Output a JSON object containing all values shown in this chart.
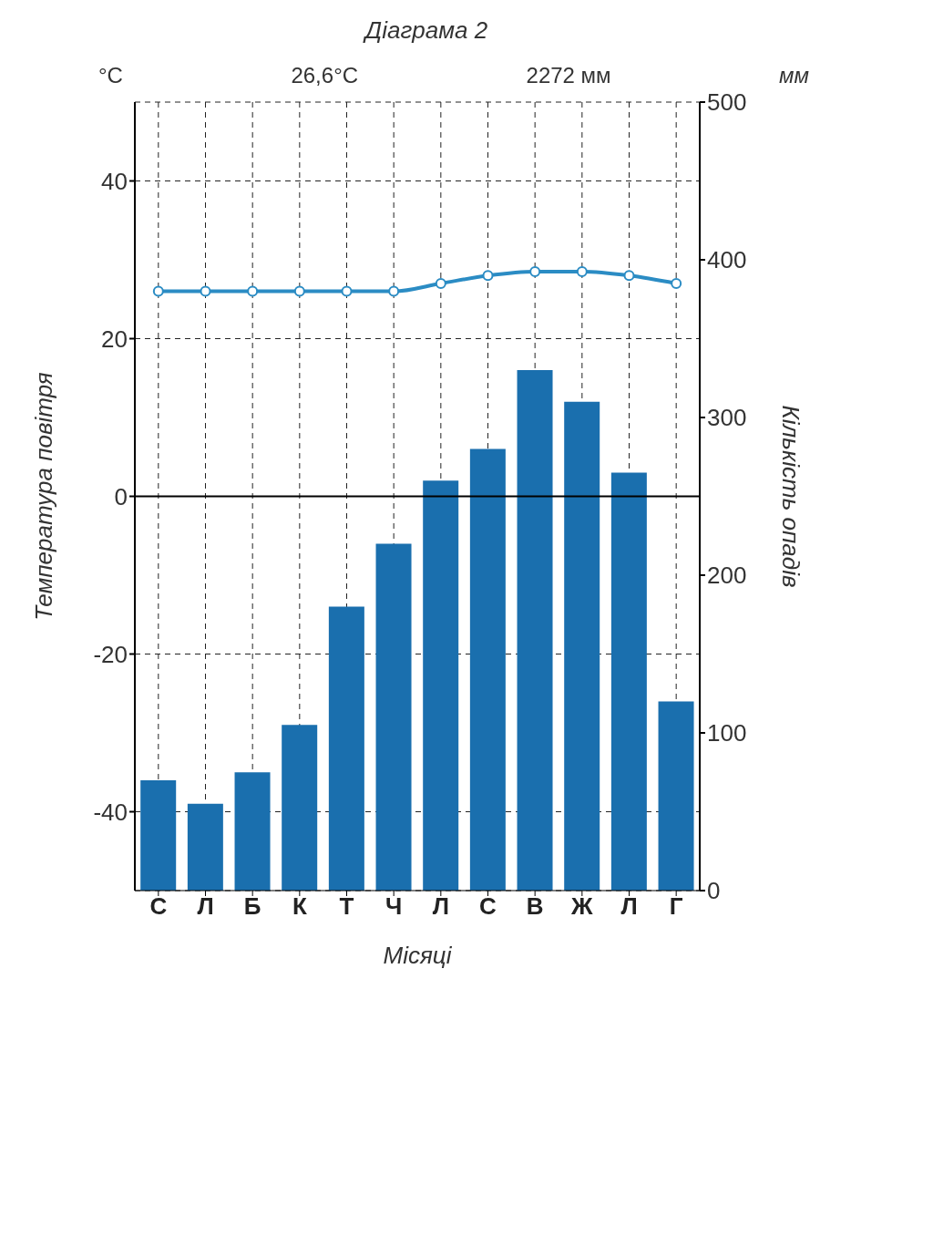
{
  "chart_data": {
    "type": "bar",
    "title": "Діаграма 2",
    "xlabel": "Місяці",
    "ylabel": "Температура повітря",
    "y2label": "Кількість опадів",
    "annotations": [
      "°C",
      "26,6°C",
      "2272 мм",
      "мм"
    ],
    "categories": [
      "С",
      "Л",
      "Б",
      "К",
      "Т",
      "Ч",
      "Л",
      "С",
      "В",
      "Ж",
      "Л",
      "Г"
    ],
    "series": [
      {
        "type": "line",
        "color": "#2b8cc4",
        "values": [
          26,
          26,
          26,
          26,
          26,
          26,
          27,
          28,
          28.5,
          28.5,
          28,
          27
        ]
      },
      {
        "axis": "y2",
        "color": "#1a6fae",
        "values": [
          70,
          55,
          75,
          105,
          180,
          220,
          260,
          280,
          330,
          310,
          265,
          120
        ]
      }
    ],
    "ylim": [
      -50,
      50
    ],
    "yticks": [
      -40,
      -20,
      0,
      20,
      40
    ],
    "y2lim": [
      0,
      500
    ],
    "y2ticks": [
      0,
      100,
      200,
      300,
      400,
      500
    ],
    "ref_lines": [
      {
        "axis": "y",
        "value": 0,
        "color": "#000000"
      }
    ],
    "grid": true,
    "marker": "circle",
    "line_style": "solid"
  }
}
